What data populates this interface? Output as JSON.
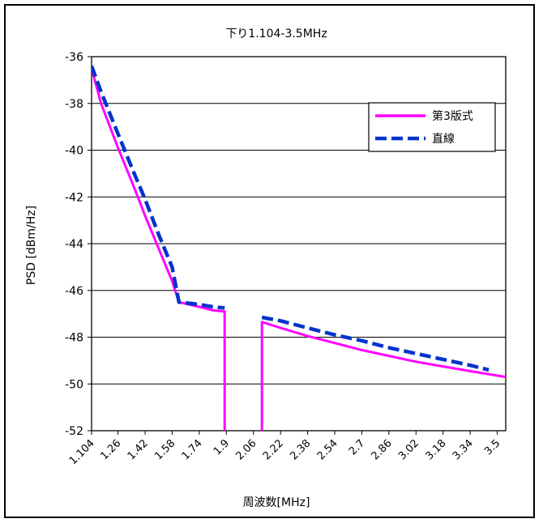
{
  "chart_data": {
    "type": "line",
    "title": "下り1.104-3.5MHz",
    "xlabel": "周波数[MHz]",
    "ylabel": "PSD [dBm/Hz]",
    "xlim": [
      1.104,
      3.55
    ],
    "ylim": [
      -52,
      -36
    ],
    "x_ticks": [
      "1.104",
      "1.26",
      "1.42",
      "1.58",
      "1.74",
      "1.9",
      "2.06",
      "2.22",
      "2.38",
      "2.54",
      "2.7",
      "2.86",
      "3.02",
      "3.18",
      "3.34",
      "3.5"
    ],
    "y_ticks": [
      -36,
      -38,
      -40,
      -42,
      -44,
      -46,
      -48,
      -50,
      -52
    ],
    "grid": "horizontal",
    "legend_position": "top-right",
    "series": [
      {
        "name": "第3版式",
        "color": "#ff00ff",
        "style": "solid",
        "segments": [
          [
            [
              1.104,
              -36.5
            ],
            [
              1.16,
              -38.0
            ],
            [
              1.26,
              -39.9
            ],
            [
              1.35,
              -41.5
            ],
            [
              1.42,
              -42.8
            ],
            [
              1.5,
              -44.2
            ],
            [
              1.58,
              -45.6
            ],
            [
              1.62,
              -46.5
            ],
            [
              1.74,
              -46.7
            ],
            [
              1.82,
              -46.85
            ],
            [
              1.89,
              -46.9
            ],
            [
              1.89,
              -52.0
            ]
          ],
          [
            [
              2.11,
              -52.0
            ],
            [
              2.11,
              -47.35
            ],
            [
              2.22,
              -47.6
            ],
            [
              2.38,
              -47.95
            ],
            [
              2.54,
              -48.25
            ],
            [
              2.7,
              -48.55
            ],
            [
              2.86,
              -48.8
            ],
            [
              3.02,
              -49.05
            ],
            [
              3.18,
              -49.25
            ],
            [
              3.34,
              -49.45
            ],
            [
              3.55,
              -49.7
            ]
          ]
        ]
      },
      {
        "name": "直線",
        "color": "#0033cc",
        "style": "dashed",
        "segments": [
          [
            [
              1.104,
              -36.4
            ],
            [
              1.16,
              -37.5
            ],
            [
              1.26,
              -39.3
            ],
            [
              1.35,
              -40.9
            ],
            [
              1.42,
              -42.1
            ],
            [
              1.5,
              -43.6
            ],
            [
              1.58,
              -45.0
            ],
            [
              1.62,
              -46.5
            ],
            [
              1.74,
              -46.6
            ],
            [
              1.82,
              -46.7
            ],
            [
              1.89,
              -46.75
            ]
          ],
          [
            [
              2.11,
              -47.15
            ],
            [
              2.22,
              -47.3
            ],
            [
              2.38,
              -47.6
            ],
            [
              2.54,
              -47.9
            ],
            [
              2.7,
              -48.15
            ],
            [
              2.86,
              -48.45
            ],
            [
              3.02,
              -48.7
            ],
            [
              3.18,
              -48.95
            ],
            [
              3.34,
              -49.2
            ],
            [
              3.45,
              -49.4
            ]
          ]
        ]
      }
    ]
  }
}
